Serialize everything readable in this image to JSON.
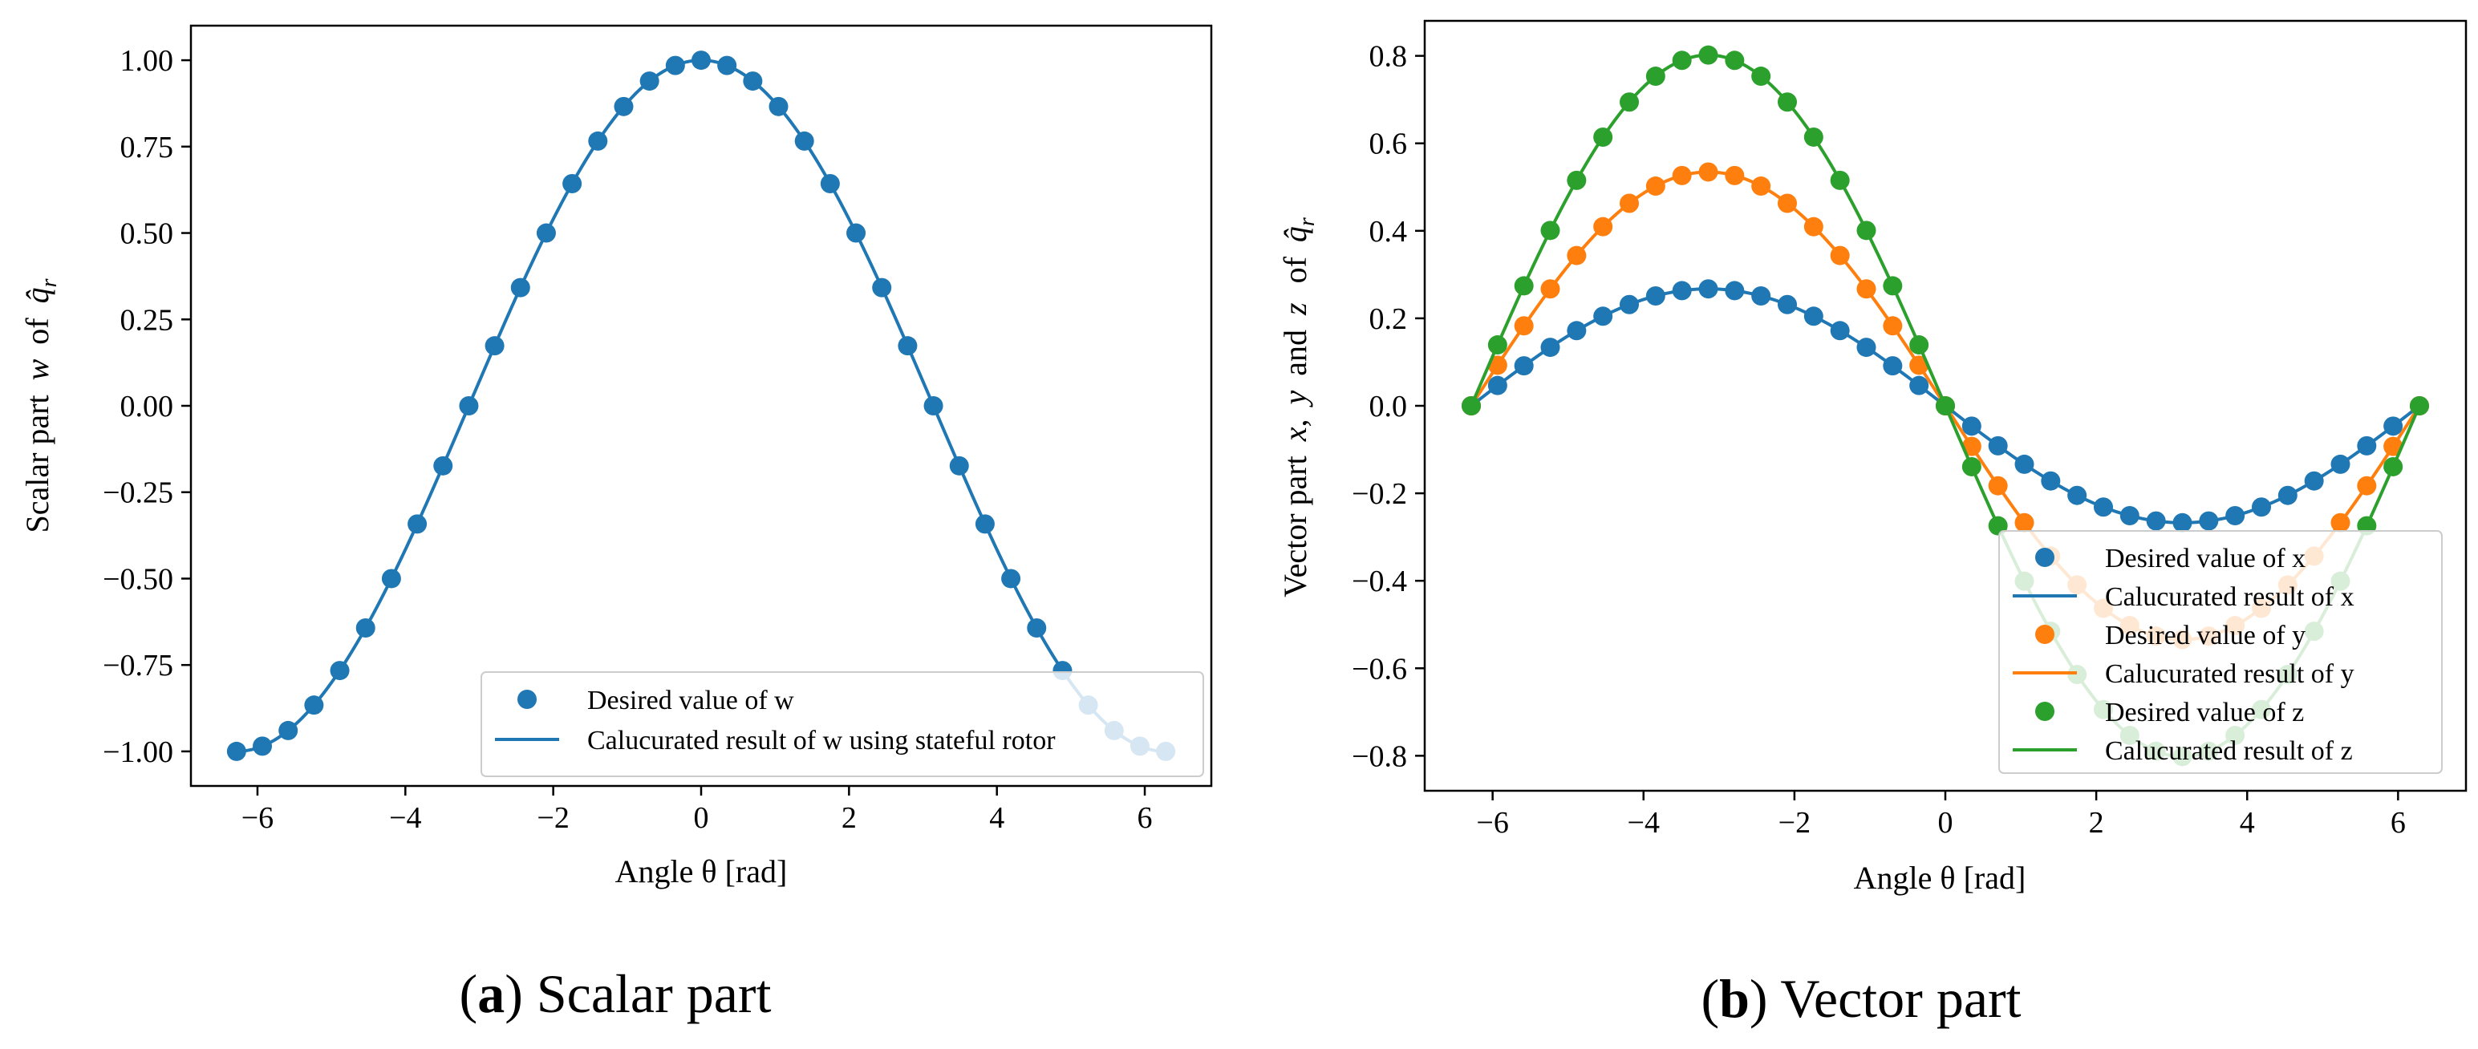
{
  "colors": {
    "blue": "#1f77b4",
    "orange": "#ff7f0e",
    "green": "#2ca02c"
  },
  "chart_data": [
    {
      "type": "line",
      "panel": "a",
      "caption_letter": "a",
      "caption_text": "Scalar part",
      "xlabel": "Angle θ [rad]",
      "ylabel_prefix": "Scalar part",
      "ylabel_w": "w",
      "ylabel_of": "of",
      "ylabel_q": "q̂",
      "ylabel_sub": "r",
      "xlim": [
        -6.9,
        6.9
      ],
      "ylim": [
        -1.1,
        1.1
      ],
      "xticks": [
        -6,
        -4,
        -2,
        0,
        2,
        4,
        6
      ],
      "xtick_labels": [
        "−6",
        "−4",
        "−2",
        "0",
        "2",
        "4",
        "6"
      ],
      "yticks": [
        1.0,
        0.75,
        0.5,
        0.25,
        0.0,
        -0.25,
        -0.5,
        -0.75,
        -1.0
      ],
      "ytick_labels": [
        "1.00",
        "0.75",
        "0.50",
        "0.25",
        "0.00",
        "−0.25",
        "−0.50",
        "−0.75",
        "−1.00"
      ],
      "x_range": [
        -6.2832,
        6.2832
      ],
      "n_samples": 37,
      "legend_position": "lower-right",
      "series": [
        {
          "name": "w",
          "color": "blue",
          "func": "cos_half",
          "marker_label": "Desired value of w",
          "line_label": "Calucurated result of w using stateful rotor"
        }
      ]
    },
    {
      "type": "line",
      "panel": "b",
      "caption_letter": "b",
      "caption_text": "Vector part",
      "xlabel": "Angle θ [rad]",
      "ylabel_prefix": "Vector part",
      "ylabel_x": "x",
      "ylabel_y": "y",
      "ylabel_and": "and",
      "ylabel_z": "z",
      "ylabel_of": "of",
      "ylabel_q": "q̂",
      "ylabel_sub": "r",
      "xlim": [
        -6.9,
        6.9
      ],
      "ylim": [
        -0.88,
        0.88
      ],
      "xticks": [
        -6,
        -4,
        -2,
        0,
        2,
        4,
        6
      ],
      "xtick_labels": [
        "−6",
        "−4",
        "−2",
        "0",
        "2",
        "4",
        "6"
      ],
      "yticks": [
        0.8,
        0.6,
        0.4,
        0.2,
        0.0,
        -0.2,
        -0.4,
        -0.6,
        -0.8
      ],
      "ytick_labels": [
        "0.8",
        "0.6",
        "0.4",
        "0.2",
        "0.0",
        "−0.2",
        "−0.4",
        "−0.6",
        "−0.8"
      ],
      "x_range": [
        -6.2832,
        6.2832
      ],
      "n_samples": 37,
      "legend_position": "lower-right",
      "series": [
        {
          "name": "x",
          "color": "blue",
          "amplitude": 0.2673,
          "func": "neg_sin_half",
          "marker_label": "Desired value of x",
          "line_label": "Calucurated result of x"
        },
        {
          "name": "y",
          "color": "orange",
          "amplitude": 0.5345,
          "func": "neg_sin_half",
          "marker_label": "Desired value of y",
          "line_label": "Calucurated result of y"
        },
        {
          "name": "z",
          "color": "green",
          "amplitude": 0.8018,
          "func": "neg_sin_half",
          "marker_label": "Desired value of z",
          "line_label": "Calucurated result of z"
        }
      ]
    }
  ]
}
